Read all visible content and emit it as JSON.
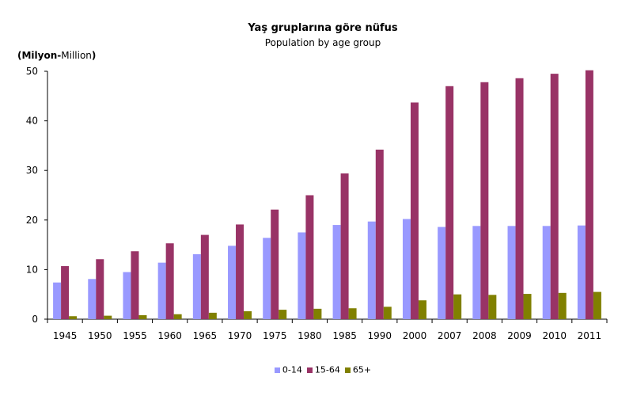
{
  "chart_data": {
    "type": "bar",
    "title": "Yaş gruplarına göre nüfus",
    "subtitle": "Population by age group",
    "unit_label_bold_left": "(Milyon-",
    "unit_label_normal": "Million",
    "unit_label_bold_right": ")",
    "categories": [
      "1945",
      "1950",
      "1955",
      "1960",
      "1965",
      "1970",
      "1975",
      "1980",
      "1985",
      "1990",
      "2000",
      "2007",
      "2008",
      "2009",
      "2010",
      "2011"
    ],
    "series": [
      {
        "name": "0-14",
        "color": "#9999ff",
        "values": [
          7.4,
          8.1,
          9.5,
          11.4,
          13.1,
          14.8,
          16.4,
          17.5,
          19.0,
          19.7,
          20.2,
          18.6,
          18.8,
          18.8,
          18.8,
          18.9
        ]
      },
      {
        "name": "15-64",
        "color": "#993366",
        "values": [
          10.7,
          12.1,
          13.7,
          15.3,
          17.0,
          19.1,
          22.1,
          25.0,
          29.4,
          34.2,
          43.7,
          47.0,
          47.8,
          48.6,
          49.5,
          50.2
        ]
      },
      {
        "name": "65+",
        "color": "#808000",
        "values": [
          0.6,
          0.7,
          0.8,
          1.0,
          1.3,
          1.6,
          1.9,
          2.1,
          2.2,
          2.5,
          3.8,
          5.0,
          4.9,
          5.1,
          5.3,
          5.5
        ]
      }
    ],
    "yticks": [
      "0",
      "10",
      "20",
      "30",
      "40",
      "50"
    ],
    "ylim": [
      0,
      50
    ],
    "grid": false,
    "legend_position": "bottom"
  }
}
